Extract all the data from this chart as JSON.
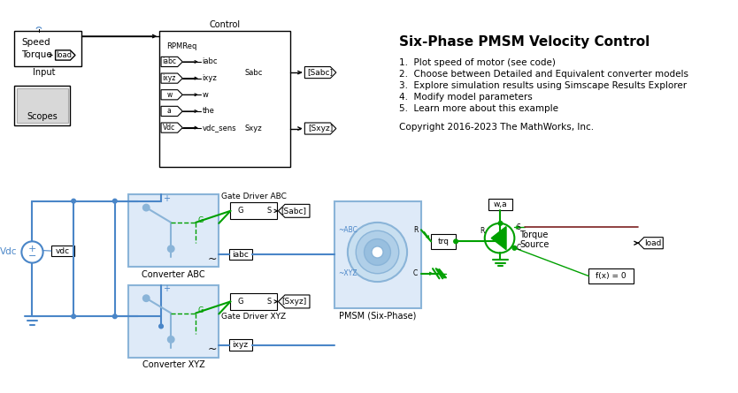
{
  "bg": "#ffffff",
  "blue": "#4a86c8",
  "lblue": "#8ab4d8",
  "lblue_fill": "#deeaf8",
  "green": "#00a000",
  "black": "#000000",
  "red_brown": "#7b2020",
  "title": "Six-Phase PMSM Velocity Control",
  "items": [
    "1.  Plot speed of motor (see code)",
    "2.  Choose between Detailed and Equivalent converter models",
    "3.  Explore simulation results using Simscape Results Explorer",
    "4.  Modify model parameters",
    "5.  Learn more about this example"
  ],
  "copyright": "Copyright 2016-2023 The MathWorks, Inc."
}
